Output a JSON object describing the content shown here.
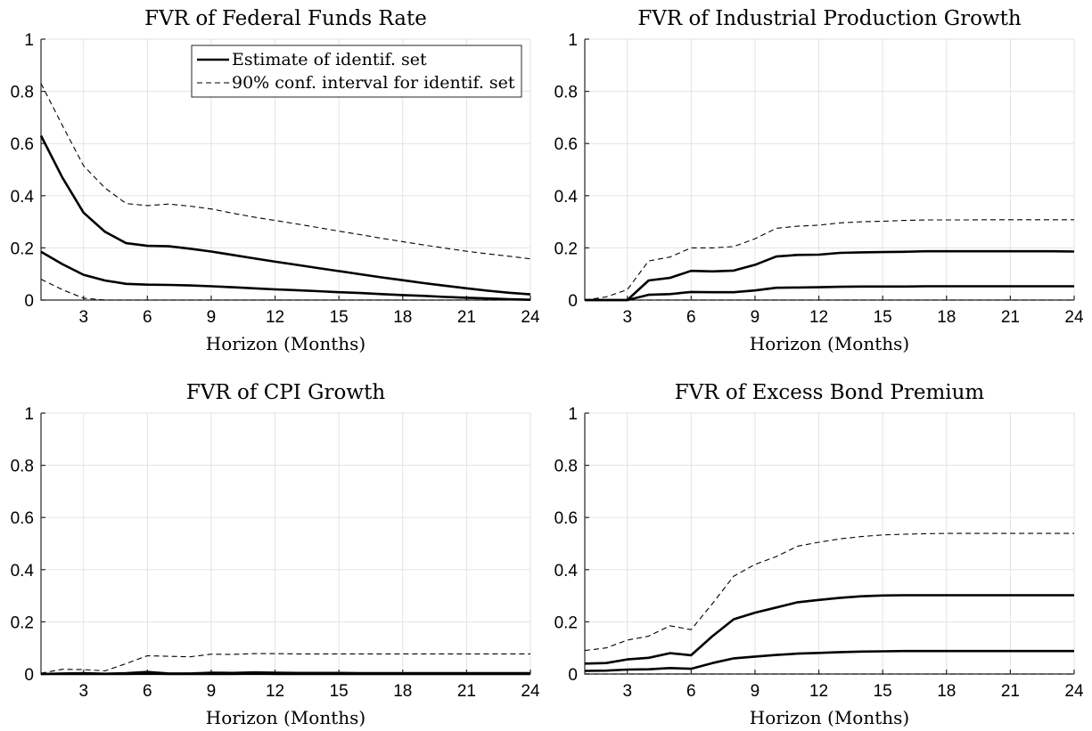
{
  "chart_data": [
    {
      "type": "line",
      "title": "FVR of Federal Funds Rate",
      "xlabel": "Horizon (Months)",
      "ylabel": "",
      "xlim": [
        1,
        24
      ],
      "ylim": [
        0,
        1
      ],
      "xticks": [
        3,
        6,
        9,
        12,
        15,
        18,
        21,
        24
      ],
      "yticks": [
        0,
        0.2,
        0.4,
        0.6,
        0.8,
        1
      ],
      "grid": true,
      "legend": {
        "placement": "top-right",
        "entries": [
          "Estimate of identif. set",
          "90% conf. interval for identif. set"
        ]
      },
      "x": [
        1,
        2,
        3,
        4,
        5,
        6,
        7,
        8,
        9,
        10,
        11,
        12,
        13,
        14,
        15,
        16,
        17,
        18,
        19,
        20,
        21,
        22,
        23,
        24
      ],
      "series": [
        {
          "name": "Estimate of identif. set",
          "style": "solid",
          "values": [
            0.63,
            0.47,
            0.335,
            0.262,
            0.218,
            0.208,
            0.206,
            0.197,
            0.186,
            0.173,
            0.16,
            0.147,
            0.135,
            0.123,
            0.111,
            0.099,
            0.087,
            0.076,
            0.065,
            0.055,
            0.045,
            0.036,
            0.028,
            0.022
          ]
        },
        {
          "name": "",
          "style": "solid",
          "values": [
            0.185,
            0.138,
            0.097,
            0.075,
            0.062,
            0.059,
            0.058,
            0.056,
            0.053,
            0.049,
            0.045,
            0.041,
            0.038,
            0.034,
            0.03,
            0.027,
            0.023,
            0.019,
            0.016,
            0.012,
            0.009,
            0.006,
            0.003,
            0.001
          ]
        },
        {
          "name": "90% conf. interval for identif. set",
          "style": "dashed",
          "values": [
            0.83,
            0.67,
            0.515,
            0.43,
            0.37,
            0.362,
            0.368,
            0.36,
            0.349,
            0.333,
            0.318,
            0.305,
            0.292,
            0.278,
            0.264,
            0.251,
            0.237,
            0.224,
            0.211,
            0.199,
            0.187,
            0.177,
            0.168,
            0.158
          ]
        },
        {
          "name": "",
          "style": "dashed",
          "values": [
            0.08,
            0.04,
            0.007,
            0,
            0,
            0,
            0,
            0,
            0,
            0,
            0,
            0,
            0,
            0,
            0,
            0,
            0,
            0,
            0,
            0,
            0,
            0,
            0,
            0
          ]
        }
      ]
    },
    {
      "type": "line",
      "title": "FVR of Industrial Production Growth",
      "xlabel": "Horizon (Months)",
      "ylabel": "",
      "xlim": [
        1,
        24
      ],
      "ylim": [
        0,
        1
      ],
      "xticks": [
        3,
        6,
        9,
        12,
        15,
        18,
        21,
        24
      ],
      "yticks": [
        0,
        0.2,
        0.4,
        0.6,
        0.8,
        1
      ],
      "grid": true,
      "x": [
        1,
        2,
        3,
        4,
        5,
        6,
        7,
        8,
        9,
        10,
        11,
        12,
        13,
        14,
        15,
        16,
        17,
        18,
        19,
        20,
        21,
        22,
        23,
        24
      ],
      "series": [
        {
          "name": "",
          "style": "solid",
          "values": [
            0,
            0,
            0,
            0.075,
            0.085,
            0.112,
            0.11,
            0.113,
            0.135,
            0.167,
            0.173,
            0.174,
            0.181,
            0.183,
            0.184,
            0.185,
            0.187,
            0.187,
            0.187,
            0.187,
            0.187,
            0.187,
            0.187,
            0.186
          ]
        },
        {
          "name": "",
          "style": "solid",
          "values": [
            0,
            0,
            0,
            0.02,
            0.023,
            0.031,
            0.03,
            0.03,
            0.037,
            0.047,
            0.048,
            0.049,
            0.051,
            0.052,
            0.052,
            0.052,
            0.053,
            0.053,
            0.053,
            0.053,
            0.053,
            0.053,
            0.053,
            0.053
          ]
        },
        {
          "name": "",
          "style": "dashed",
          "values": [
            0,
            0.012,
            0.04,
            0.15,
            0.165,
            0.2,
            0.2,
            0.205,
            0.235,
            0.275,
            0.283,
            0.287,
            0.296,
            0.3,
            0.302,
            0.305,
            0.307,
            0.307,
            0.307,
            0.308,
            0.308,
            0.308,
            0.308,
            0.308
          ]
        },
        {
          "name": "",
          "style": "dashed",
          "values": [
            0,
            0,
            0,
            0,
            0,
            0,
            0,
            0,
            0,
            0,
            0,
            0,
            0,
            0,
            0,
            0,
            0,
            0,
            0,
            0,
            0,
            0,
            0,
            0
          ]
        }
      ]
    },
    {
      "type": "line",
      "title": "FVR of CPI Growth",
      "xlabel": "Horizon (Months)",
      "ylabel": "",
      "xlim": [
        1,
        24
      ],
      "ylim": [
        0,
        1
      ],
      "xticks": [
        3,
        6,
        9,
        12,
        15,
        18,
        21,
        24
      ],
      "yticks": [
        0,
        0.2,
        0.4,
        0.6,
        0.8,
        1
      ],
      "grid": true,
      "x": [
        1,
        2,
        3,
        4,
        5,
        6,
        7,
        8,
        9,
        10,
        11,
        12,
        13,
        14,
        15,
        16,
        17,
        18,
        19,
        20,
        21,
        22,
        23,
        24
      ],
      "series": [
        {
          "name": "",
          "style": "solid",
          "values": [
            0,
            0.002,
            0.003,
            0.001,
            0.003,
            0.008,
            0.002,
            0.002,
            0.005,
            0.004,
            0.006,
            0.005,
            0.004,
            0.004,
            0.004,
            0.003,
            0.003,
            0.003,
            0.003,
            0.003,
            0.003,
            0.003,
            0.003,
            0.003
          ]
        },
        {
          "name": "",
          "style": "solid",
          "values": [
            0,
            0,
            0,
            0,
            0,
            0.001,
            0,
            0,
            0,
            0,
            0.001,
            0,
            0,
            0,
            0,
            0,
            0,
            0,
            0,
            0,
            0,
            0,
            0,
            0
          ]
        },
        {
          "name": "",
          "style": "dashed",
          "values": [
            0.003,
            0.018,
            0.017,
            0.012,
            0.04,
            0.07,
            0.068,
            0.066,
            0.076,
            0.075,
            0.078,
            0.078,
            0.077,
            0.077,
            0.077,
            0.077,
            0.077,
            0.077,
            0.077,
            0.077,
            0.077,
            0.077,
            0.077,
            0.077
          ]
        },
        {
          "name": "",
          "style": "dashed",
          "values": [
            0,
            0,
            0,
            0,
            0,
            0,
            0,
            0,
            0,
            0,
            0,
            0,
            0,
            0,
            0,
            0,
            0,
            0,
            0,
            0,
            0,
            0,
            0,
            0
          ]
        }
      ]
    },
    {
      "type": "line",
      "title": "FVR of Excess Bond Premium",
      "xlabel": "Horizon (Months)",
      "ylabel": "",
      "xlim": [
        1,
        24
      ],
      "ylim": [
        0,
        1
      ],
      "xticks": [
        3,
        6,
        9,
        12,
        15,
        18,
        21,
        24
      ],
      "yticks": [
        0,
        0.2,
        0.4,
        0.6,
        0.8,
        1
      ],
      "grid": true,
      "x": [
        1,
        2,
        3,
        4,
        5,
        6,
        7,
        8,
        9,
        10,
        11,
        12,
        13,
        14,
        15,
        16,
        17,
        18,
        19,
        20,
        21,
        22,
        23,
        24
      ],
      "series": [
        {
          "name": "",
          "style": "solid",
          "values": [
            0.04,
            0.042,
            0.056,
            0.062,
            0.08,
            0.072,
            0.145,
            0.21,
            0.235,
            0.255,
            0.275,
            0.284,
            0.292,
            0.298,
            0.301,
            0.302,
            0.302,
            0.302,
            0.302,
            0.302,
            0.302,
            0.302,
            0.302,
            0.302
          ]
        },
        {
          "name": "",
          "style": "solid",
          "values": [
            0.012,
            0.013,
            0.017,
            0.018,
            0.023,
            0.02,
            0.042,
            0.06,
            0.067,
            0.073,
            0.078,
            0.081,
            0.084,
            0.086,
            0.087,
            0.088,
            0.088,
            0.088,
            0.088,
            0.088,
            0.088,
            0.088,
            0.088,
            0.088
          ]
        },
        {
          "name": "",
          "style": "dashed",
          "values": [
            0.09,
            0.1,
            0.13,
            0.145,
            0.185,
            0.17,
            0.27,
            0.375,
            0.42,
            0.45,
            0.49,
            0.505,
            0.518,
            0.527,
            0.533,
            0.536,
            0.538,
            0.539,
            0.539,
            0.539,
            0.539,
            0.539,
            0.539,
            0.539
          ]
        },
        {
          "name": "",
          "style": "dashed",
          "values": [
            0,
            0,
            0,
            0,
            0,
            0,
            0,
            0,
            0,
            0,
            0,
            0,
            0,
            0,
            0,
            0,
            0,
            0,
            0,
            0,
            0,
            0,
            0,
            0
          ]
        }
      ]
    }
  ]
}
